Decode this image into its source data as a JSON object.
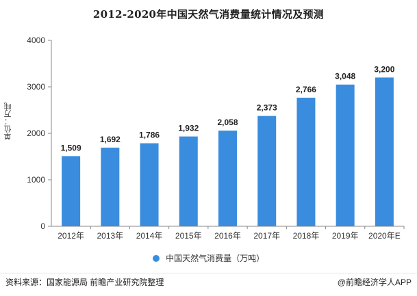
{
  "chart_data": {
    "type": "bar",
    "title": "2012-2020年中国天然气消费量统计情况及预测",
    "ylabel": "单位：万吨",
    "xlabel": "",
    "categories": [
      "2012年",
      "2013年",
      "2014年",
      "2015年",
      "2016年",
      "2017年",
      "2018年",
      "2019年",
      "2020年E"
    ],
    "values": [
      1509,
      1692,
      1786,
      1932,
      2058,
      2373,
      2766,
      3048,
      3200
    ],
    "value_labels": [
      "1,509",
      "1,692",
      "1,786",
      "1,932",
      "2,058",
      "2,373",
      "2,766",
      "3,048",
      "3,200"
    ],
    "ylim": [
      0,
      4000
    ],
    "yticks": [
      0,
      1000,
      2000,
      3000,
      4000
    ],
    "grid": false,
    "legend_position": "bottom",
    "series": [
      {
        "name": "中国天然气消费量（万吨）",
        "values": [
          1509,
          1692,
          1786,
          1932,
          2058,
          2373,
          2766,
          3048,
          3200
        ]
      }
    ]
  },
  "colors": {
    "bar": "#3a8dde",
    "axis": "#888888",
    "text": "#333333"
  },
  "footer": {
    "source": "资料来源：国家能源局 前瞻产业研究院整理",
    "brand": "@前瞻经济学人APP"
  }
}
